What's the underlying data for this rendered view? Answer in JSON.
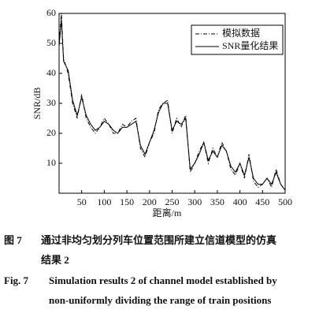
{
  "chart_data": {
    "type": "line",
    "xlabel": "距离/m",
    "ylabel": "SNR/dB",
    "x": [
      0,
      5,
      10,
      20,
      30,
      40,
      50,
      60,
      70,
      80,
      90,
      100,
      110,
      120,
      130,
      140,
      150,
      160,
      170,
      180,
      190,
      200,
      210,
      220,
      230,
      240,
      250,
      260,
      270,
      280,
      290,
      300,
      310,
      320,
      330,
      340,
      350,
      360,
      370,
      380,
      390,
      400,
      410,
      420,
      430,
      440,
      450,
      460,
      470,
      480,
      490,
      500
    ],
    "series": [
      {
        "name": "模拟数据",
        "color": "#000000",
        "dash": "dashdot",
        "values": [
          50,
          60,
          45,
          40,
          30,
          25,
          33,
          25,
          22,
          20,
          22,
          25,
          23,
          20,
          20,
          23,
          22,
          24,
          25,
          15,
          12,
          17,
          20,
          28,
          30,
          31,
          20,
          25,
          22,
          26,
          7,
          10,
          14,
          17,
          10,
          15,
          12,
          17,
          14,
          8,
          6,
          10,
          5,
          13,
          4,
          2,
          3,
          5,
          2,
          8,
          3,
          1
        ]
      },
      {
        "name": "SNR量化结果",
        "color": "#000000",
        "dash": "solid",
        "values": [
          49,
          58,
          44,
          41,
          31,
          26,
          32,
          26,
          23,
          21,
          22,
          24,
          23,
          21,
          20,
          22,
          22,
          23,
          24,
          16,
          13,
          17,
          21,
          27,
          30,
          30,
          21,
          24,
          23,
          25,
          8,
          10,
          13,
          17,
          11,
          14,
          12,
          16,
          14,
          9,
          7,
          10,
          6,
          12,
          5,
          3,
          3,
          5,
          3,
          7,
          3,
          1
        ]
      }
    ],
    "xlim": [
      0,
      500
    ],
    "xticks": [
      50,
      100,
      150,
      200,
      250,
      300,
      350,
      400,
      450,
      500
    ],
    "ylim": [
      0,
      60
    ],
    "yticks": [
      10,
      20,
      30,
      40,
      50,
      60
    ],
    "legend": "upper right"
  },
  "caption": {
    "cn_label": "图 7",
    "cn_lines": [
      "通过非均匀划分列车位置范围所建立信道模型的仿真",
      "结果 2"
    ],
    "en_label": "Fig. 7",
    "en_lines": [
      "Simulation results 2 of channel model established by",
      "non-uniformly dividing the range of train positions"
    ]
  }
}
